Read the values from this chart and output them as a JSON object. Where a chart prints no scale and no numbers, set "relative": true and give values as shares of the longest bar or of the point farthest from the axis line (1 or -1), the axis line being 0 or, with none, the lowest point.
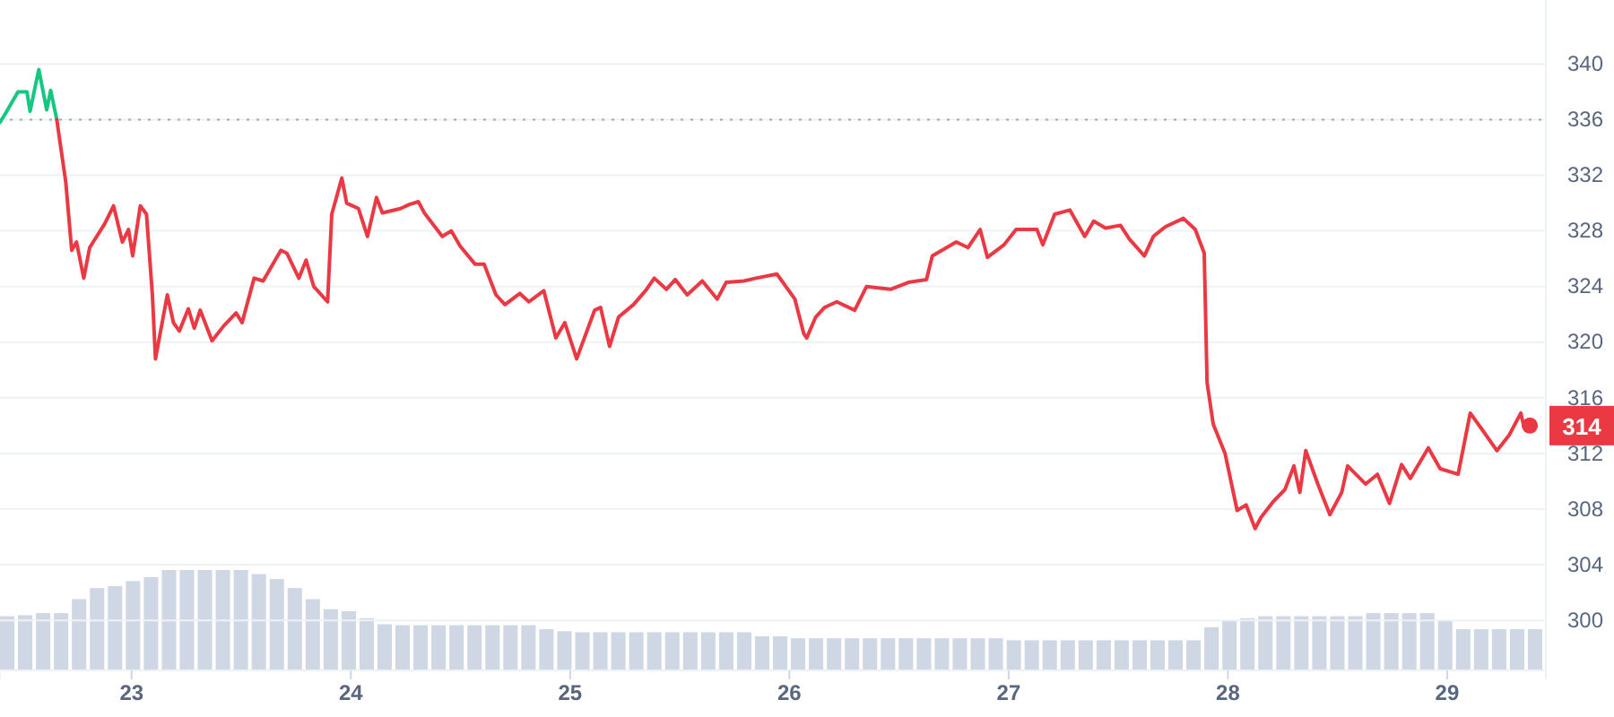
{
  "chart_data": [
    {
      "type": "line",
      "xlim": [
        22.4,
        29.45
      ],
      "xticks": [
        23,
        24,
        25,
        26,
        27,
        28,
        29
      ],
      "ylim": [
        296.4,
        344.6
      ],
      "yticks": [
        300,
        304,
        308,
        312,
        316,
        320,
        324,
        328,
        332,
        336,
        340
      ],
      "grid": "y",
      "marker": "none",
      "line_style": "solid",
      "series": [
        {
          "color": "#16c784",
          "x": [
            22.4,
            22.427,
            22.482,
            22.523,
            22.537,
            22.577,
            22.613,
            22.631,
            22.659
          ],
          "values": [
            335.8,
            336.5,
            338.0,
            338.0,
            336.6,
            339.6,
            336.7,
            338.1,
            336.0
          ]
        },
        {
          "color": "#ea3943",
          "x": [
            22.659,
            22.7,
            22.727,
            22.749,
            22.782,
            22.809,
            22.877,
            22.918,
            22.958,
            22.986,
            23.005,
            23.04,
            23.068,
            23.095,
            23.109,
            23.163,
            23.191,
            23.218,
            23.259,
            23.286,
            23.313,
            23.367,
            23.422,
            23.477,
            23.504,
            23.559,
            23.6,
            23.681,
            23.708,
            23.763,
            23.796,
            23.831,
            23.894,
            23.913,
            23.959,
            23.981,
            24.035,
            24.076,
            24.117,
            24.144,
            24.226,
            24.267,
            24.308,
            24.335,
            24.417,
            24.458,
            24.499,
            24.567,
            24.608,
            24.662,
            24.703,
            24.771,
            24.812,
            24.88,
            24.935,
            24.976,
            25.03,
            25.112,
            25.139,
            25.18,
            25.221,
            25.289,
            25.344,
            25.384,
            25.439,
            25.48,
            25.534,
            25.603,
            25.671,
            25.712,
            25.793,
            25.848,
            25.943,
            26.025,
            26.066,
            26.079,
            26.12,
            26.161,
            26.216,
            26.298,
            26.352,
            26.461,
            26.543,
            26.625,
            26.652,
            26.761,
            26.815,
            26.87,
            26.903,
            26.979,
            27.034,
            27.129,
            27.156,
            27.21,
            27.279,
            27.347,
            27.388,
            27.442,
            27.51,
            27.551,
            27.619,
            27.66,
            27.715,
            27.797,
            27.851,
            27.892,
            27.905,
            27.933,
            27.987,
            28.042,
            28.083,
            28.124,
            28.151,
            28.205,
            28.26,
            28.301,
            28.328,
            28.355,
            28.41,
            28.465,
            28.519,
            28.546,
            28.628,
            28.682,
            28.737,
            28.792,
            28.832,
            28.914,
            28.968,
            29.05,
            29.105,
            29.16,
            29.227,
            29.282,
            29.336,
            29.35,
            29.377
          ],
          "values": [
            336.0,
            331.5,
            326.6,
            327.2,
            324.6,
            326.8,
            328.5,
            329.8,
            327.2,
            328.1,
            326.2,
            329.8,
            329.2,
            323.4,
            318.8,
            323.4,
            321.4,
            320.8,
            322.4,
            321.0,
            322.3,
            320.1,
            321.2,
            322.1,
            321.4,
            324.6,
            324.4,
            326.6,
            326.4,
            324.6,
            325.9,
            324.0,
            322.9,
            329.2,
            331.8,
            330.0,
            329.6,
            327.6,
            330.4,
            329.3,
            329.6,
            329.9,
            330.1,
            329.3,
            327.6,
            328.0,
            326.9,
            325.6,
            325.6,
            323.4,
            322.7,
            323.5,
            322.9,
            323.7,
            320.3,
            321.4,
            318.8,
            322.3,
            322.5,
            319.7,
            321.8,
            322.7,
            323.7,
            324.6,
            323.8,
            324.5,
            323.4,
            324.4,
            323.1,
            324.3,
            324.4,
            324.6,
            324.9,
            323.1,
            320.6,
            320.3,
            321.8,
            322.5,
            322.9,
            322.3,
            324.0,
            323.8,
            324.3,
            324.5,
            326.2,
            327.2,
            326.8,
            328.1,
            326.1,
            327.0,
            328.1,
            328.1,
            327.0,
            329.2,
            329.5,
            327.6,
            328.7,
            328.2,
            328.4,
            327.4,
            326.2,
            327.6,
            328.3,
            328.9,
            328.1,
            326.4,
            317.1,
            314.1,
            312.0,
            307.9,
            308.3,
            306.6,
            307.4,
            308.5,
            309.4,
            311.1,
            309.2,
            312.2,
            309.8,
            307.6,
            309.2,
            311.1,
            309.8,
            310.5,
            308.4,
            311.2,
            310.2,
            312.4,
            310.9,
            310.5,
            314.9,
            313.7,
            312.2,
            313.3,
            314.9,
            313.9,
            314.0
          ]
        }
      ],
      "ref_lines": [
        {
          "axis": "y",
          "value": 336,
          "color": "#a0a7b8",
          "line_style": "dotted"
        }
      ],
      "annotations": [
        {
          "text": "314",
          "x": 29.377,
          "y": 314
        }
      ]
    },
    {
      "type": "bar",
      "relative": true,
      "color": "#cfd6e4",
      "categories": [
        null,
        null,
        null,
        null,
        null,
        null,
        null,
        null,
        null,
        null,
        null,
        null,
        null,
        null,
        null,
        null,
        null,
        null,
        null,
        null,
        null,
        null,
        null,
        null,
        null,
        null,
        null,
        null,
        null,
        null,
        null,
        null,
        null,
        null,
        null,
        null,
        null,
        null,
        null,
        null,
        null,
        null,
        null,
        null,
        null,
        null,
        null,
        null,
        null,
        null,
        null,
        null,
        null,
        null,
        null,
        null,
        null,
        null,
        null,
        null,
        null,
        null,
        null,
        null,
        null,
        null,
        null,
        null,
        null,
        null,
        null,
        null,
        null,
        null,
        null,
        null,
        null,
        null,
        null,
        null,
        null,
        null,
        null,
        null,
        null,
        null
      ],
      "values": [
        0.54,
        0.55,
        0.57,
        0.57,
        0.71,
        0.82,
        0.84,
        0.89,
        0.93,
        1,
        1,
        1,
        1,
        1,
        0.96,
        0.91,
        0.82,
        0.71,
        0.61,
        0.59,
        0.52,
        0.46,
        0.45,
        0.45,
        0.45,
        0.45,
        0.45,
        0.45,
        0.45,
        0.45,
        0.41,
        0.39,
        0.38,
        0.38,
        0.38,
        0.38,
        0.38,
        0.38,
        0.38,
        0.38,
        0.38,
        0.38,
        0.34,
        0.34,
        0.32,
        0.32,
        0.32,
        0.32,
        0.32,
        0.32,
        0.32,
        0.32,
        0.32,
        0.32,
        0.32,
        0.32,
        0.3,
        0.3,
        0.3,
        0.3,
        0.3,
        0.3,
        0.3,
        0.3,
        0.3,
        0.3,
        0.3,
        0.43,
        0.5,
        0.52,
        0.54,
        0.54,
        0.54,
        0.54,
        0.54,
        0.54,
        0.57,
        0.57,
        0.57,
        0.57,
        0.5,
        0.41,
        0.41,
        0.41,
        0.41,
        0.41
      ]
    }
  ]
}
